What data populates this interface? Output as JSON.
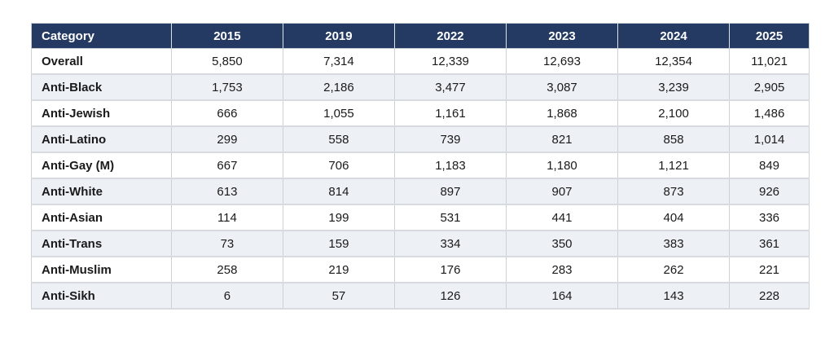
{
  "chart_data": {
    "type": "table",
    "title": "",
    "columns": [
      "Category",
      "2015",
      "2019",
      "2022",
      "2023",
      "2024",
      "2025"
    ],
    "rows": [
      {
        "category": "Overall",
        "values": [
          "5,850",
          "7,314",
          "12,339",
          "12,693",
          "12,354",
          "11,021"
        ]
      },
      {
        "category": "Anti-Black",
        "values": [
          "1,753",
          "2,186",
          "3,477",
          "3,087",
          "3,239",
          "2,905"
        ]
      },
      {
        "category": "Anti-Jewish",
        "values": [
          "666",
          "1,055",
          "1,161",
          "1,868",
          "2,100",
          "1,486"
        ]
      },
      {
        "category": "Anti-Latino",
        "values": [
          "299",
          "558",
          "739",
          "821",
          "858",
          "1,014"
        ]
      },
      {
        "category": "Anti-Gay (M)",
        "values": [
          "667",
          "706",
          "1,183",
          "1,180",
          "1,121",
          "849"
        ]
      },
      {
        "category": "Anti-White",
        "values": [
          "613",
          "814",
          "897",
          "907",
          "873",
          "926"
        ]
      },
      {
        "category": "Anti-Asian",
        "values": [
          "114",
          "199",
          "531",
          "441",
          "404",
          "336"
        ]
      },
      {
        "category": "Anti-Trans",
        "values": [
          "73",
          "159",
          "334",
          "350",
          "383",
          "361"
        ]
      },
      {
        "category": "Anti-Muslim",
        "values": [
          "258",
          "219",
          "176",
          "283",
          "262",
          "221"
        ]
      },
      {
        "category": "Anti-Sikh",
        "values": [
          "6",
          "57",
          "126",
          "164",
          "143",
          "228"
        ]
      }
    ],
    "layout": {
      "header_position": "top",
      "row_striping": "alternate",
      "grid": true
    },
    "colors": {
      "header_bg": "#243a62",
      "header_text": "#ffffff",
      "row_bg": "#ffffff",
      "alt_row_bg": "#edf1f6",
      "border": "#ccd1d7",
      "body_text": "#1a1a1a"
    }
  }
}
